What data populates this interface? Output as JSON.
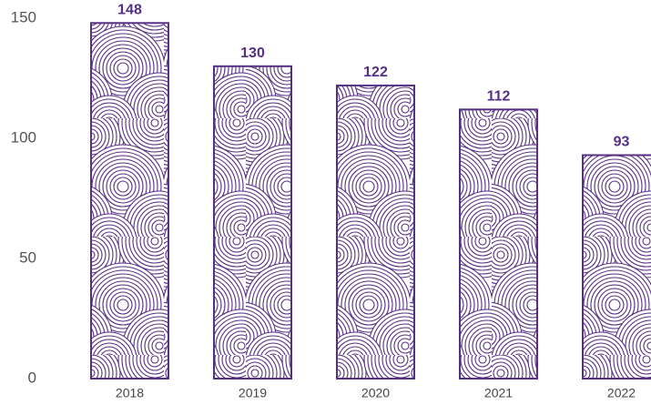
{
  "chart_data": {
    "type": "bar",
    "categories": [
      "2018",
      "2019",
      "2020",
      "2021",
      "2022"
    ],
    "values": [
      148,
      130,
      122,
      112,
      93
    ],
    "color": "#563084",
    "ylim": [
      0,
      150
    ],
    "yticks": [
      0,
      50,
      100,
      150
    ],
    "grid": false
  }
}
